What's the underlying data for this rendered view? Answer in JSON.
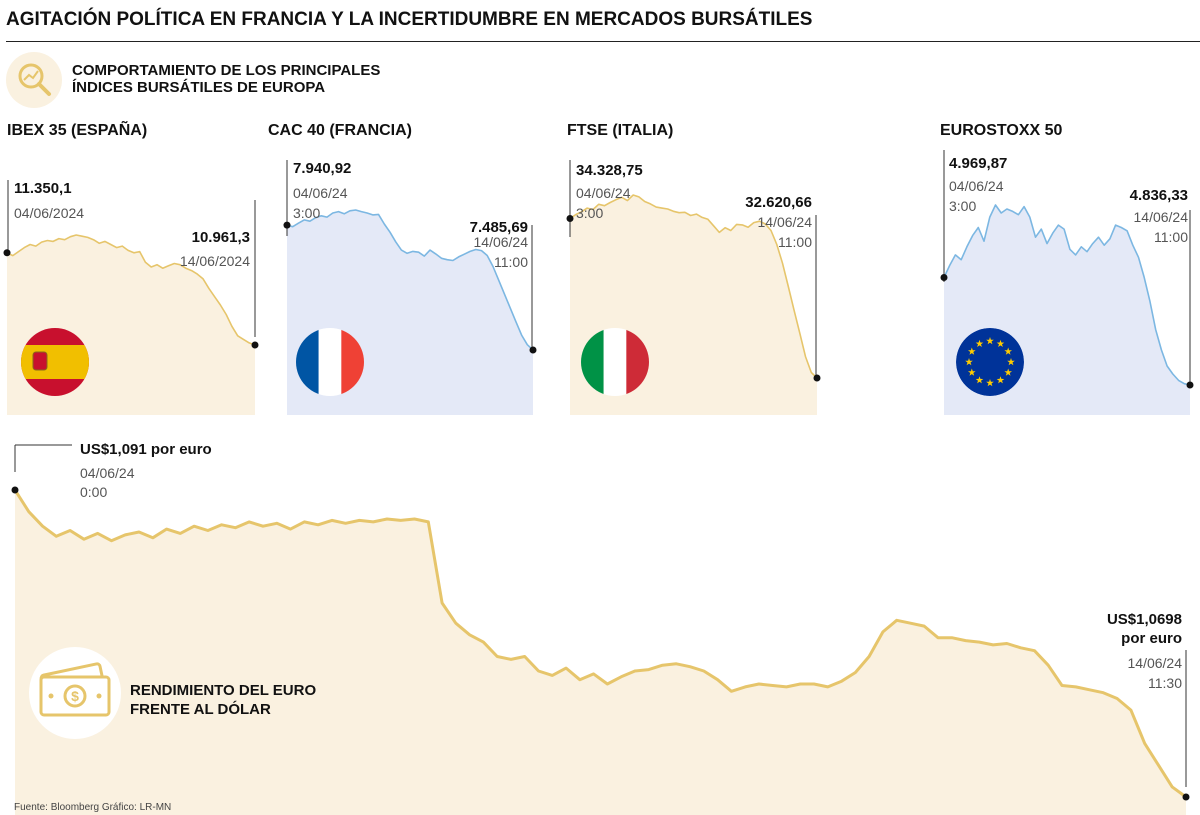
{
  "header": {
    "title": "AGITACIÓN POLÍTICA EN FRANCIA Y LA INCERTIDUMBRE EN MERCADOS BURSÁTILES",
    "subtitle_line1": "COMPORTAMIENTO DE LOS PRINCIPALES",
    "subtitle_line2": "ÍNDICES BURSÁTILES DE EUROPA"
  },
  "colors": {
    "gold": "#e6c56b",
    "gold_fill": "#faf1e0",
    "blue": "#7cb7e2",
    "blue_fill": "#e4e9f7",
    "spain_red": "#c8102e",
    "spain_yellow": "#f1bf00",
    "france_blue": "#0055a4",
    "france_red": "#ef4135",
    "italy_green": "#009246",
    "italy_red": "#ce2b37",
    "eu_blue": "#003399",
    "eu_star": "#ffcc00"
  },
  "source": "Fuente: Bloomberg   Gráfico: LR-MN",
  "chart_data": [
    {
      "type": "line",
      "id": "ibex",
      "title": "IBEX 35 (ESPAÑA)",
      "color": "gold",
      "flag": "spain",
      "start": {
        "value": "11.350,1",
        "date": "04/06/2024",
        "time": ""
      },
      "end": {
        "value": "10.961,3",
        "date": "14/06/2024",
        "time": ""
      },
      "series": [
        {
          "values": [
            11350.1,
            11338,
            11355,
            11372,
            11385,
            11378,
            11395,
            11402,
            11398,
            11410,
            11405,
            11418,
            11425,
            11420,
            11415,
            11405,
            11390,
            11398,
            11385,
            11372,
            11378,
            11360,
            11350,
            11355,
            11310,
            11290,
            11300,
            11285,
            11295,
            11305,
            11300,
            11285,
            11275,
            11260,
            11240,
            11200,
            11165,
            11130,
            11090,
            11040,
            11000,
            10985,
            10970,
            10961.3
          ]
        }
      ]
    },
    {
      "type": "line",
      "id": "cac",
      "title": "CAC 40 (FRANCIA)",
      "color": "blue",
      "flag": "france",
      "start": {
        "value": "7.940,92",
        "date": "04/06/24",
        "time": "3:00"
      },
      "end": {
        "value": "7.485,69",
        "date": "14/06/24",
        "time": "11:00"
      },
      "series": [
        {
          "values": [
            7940.92,
            7935,
            7948,
            7960,
            7955,
            7968,
            7975,
            7970,
            7985,
            7990,
            7982,
            7993,
            7996,
            7990,
            7985,
            7978,
            7980,
            7945,
            7915,
            7880,
            7850,
            7838,
            7845,
            7842,
            7828,
            7850,
            7836,
            7820,
            7815,
            7812,
            7825,
            7835,
            7845,
            7852,
            7848,
            7830,
            7790,
            7740,
            7690,
            7640,
            7590,
            7540,
            7505,
            7485.69
          ]
        }
      ]
    },
    {
      "type": "line",
      "id": "ftse",
      "title": "FTSE (ITALIA)",
      "color": "gold",
      "flag": "italy",
      "start": {
        "value": "34.328,75",
        "date": "04/06/24",
        "time": "3:00"
      },
      "end": {
        "value": "32.620,66",
        "date": "14/06/24",
        "time": "11:00"
      },
      "series": [
        {
          "values": [
            34328.75,
            34370,
            34400,
            34440,
            34425,
            34480,
            34465,
            34500,
            34530,
            34555,
            34520,
            34580,
            34560,
            34510,
            34485,
            34450,
            34440,
            34430,
            34405,
            34390,
            34395,
            34360,
            34375,
            34340,
            34320,
            34250,
            34180,
            34230,
            34200,
            34265,
            34260,
            34235,
            34285,
            34300,
            34270,
            34200,
            34050,
            33850,
            33600,
            33350,
            33100,
            32850,
            32680,
            32620.66
          ]
        }
      ]
    },
    {
      "type": "line",
      "id": "eurostoxx",
      "title": "EUROSTOXX 50",
      "color": "blue",
      "flag": "eu",
      "start": {
        "value": "4.969,87",
        "date": "04/06/24",
        "time": "3:00"
      },
      "end": {
        "value": "4.836,33",
        "date": "14/06/24",
        "time": "11:00"
      },
      "series": [
        {
          "values": [
            4969.87,
            4985,
            4998,
            4992,
            5008,
            5022,
            5032,
            5015,
            5045,
            5060,
            5050,
            5055,
            5052,
            5048,
            5058,
            5045,
            5020,
            5030,
            5012,
            5025,
            5035,
            5030,
            5005,
            4998,
            5008,
            5002,
            5012,
            5020,
            5010,
            5018,
            5035,
            5032,
            5028,
            5010,
            4995,
            4970,
            4940,
            4905,
            4880,
            4860,
            4850,
            4842,
            4838,
            4836.33
          ]
        }
      ]
    },
    {
      "type": "line",
      "id": "euro",
      "title": "RENDIMIENTO DEL EURO FRENTE AL DÓLAR",
      "caption_line1": "RENDIMIENTO DEL EURO",
      "caption_line2": "FRENTE AL DÓLAR",
      "color": "gold",
      "start": {
        "value": "US$1,091 por euro",
        "date": "04/06/24",
        "time": "0:00"
      },
      "end": {
        "value_line1": "US$1,0698",
        "value_line2": "por euro",
        "date": "14/06/24",
        "time": "11:30"
      },
      "series": [
        {
          "values": [
            1.091,
            1.0895,
            1.0885,
            1.0878,
            1.0882,
            1.0876,
            1.088,
            1.0875,
            1.0879,
            1.0881,
            1.0877,
            1.0883,
            1.088,
            1.0885,
            1.0882,
            1.0886,
            1.0884,
            1.0888,
            1.0885,
            1.0887,
            1.0883,
            1.0888,
            1.0886,
            1.0889,
            1.0887,
            1.0889,
            1.0888,
            1.089,
            1.0889,
            1.089,
            1.0888,
            1.0832,
            1.0818,
            1.081,
            1.0805,
            1.0795,
            1.0793,
            1.0795,
            1.0785,
            1.0782,
            1.0787,
            1.0779,
            1.0783,
            1.0776,
            1.0781,
            1.0785,
            1.0786,
            1.0789,
            1.079,
            1.0788,
            1.0785,
            1.0779,
            1.0771,
            1.0774,
            1.0776,
            1.0775,
            1.0774,
            1.0776,
            1.0776,
            1.0774,
            1.0778,
            1.0784,
            1.0795,
            1.0812,
            1.082,
            1.0818,
            1.0816,
            1.0808,
            1.0808,
            1.0806,
            1.0805,
            1.0803,
            1.0804,
            1.0801,
            1.0799,
            1.0789,
            1.0775,
            1.0774,
            1.0772,
            1.077,
            1.0766,
            1.0758,
            1.0735,
            1.072,
            1.0705,
            1.0698
          ]
        }
      ]
    }
  ]
}
